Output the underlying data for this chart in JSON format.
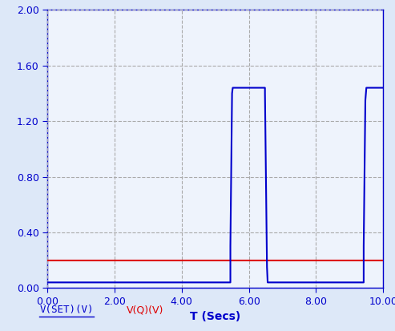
{
  "title": "",
  "xlabel": "T (Secs)",
  "ylabel": "",
  "xlim": [
    0.0,
    10.0
  ],
  "ylim": [
    0.0,
    2.0
  ],
  "xticks": [
    0.0,
    2.0,
    4.0,
    6.0,
    8.0,
    10.0
  ],
  "yticks": [
    0.0,
    0.4,
    0.8,
    1.2,
    1.6,
    2.0
  ],
  "background_color": "#dde8f8",
  "plot_bg_color": "#eef3fc",
  "grid_color": "#aaaaaa",
  "vset_color": "#dd0000",
  "vq_color": "#0000cc",
  "vset_value": 0.2,
  "legend_labels": [
    "V(SET)(V)",
    "V(Q)(V)"
  ],
  "legend_colors": [
    "#0000cc",
    "#dd0000"
  ],
  "font_color_blue": "#0000cc",
  "font_color_red": "#dd0000",
  "vq_t": [
    0.0,
    5.45,
    5.45,
    5.5,
    5.52,
    5.52,
    6.48,
    6.48,
    6.54,
    6.56,
    6.56,
    9.42,
    9.42,
    9.47,
    9.5,
    9.5,
    10.0
  ],
  "vq_v": [
    0.04,
    0.04,
    0.3,
    1.4,
    1.44,
    1.44,
    1.44,
    1.4,
    0.15,
    0.04,
    0.04,
    0.04,
    0.3,
    1.35,
    1.44,
    1.44,
    1.44
  ]
}
